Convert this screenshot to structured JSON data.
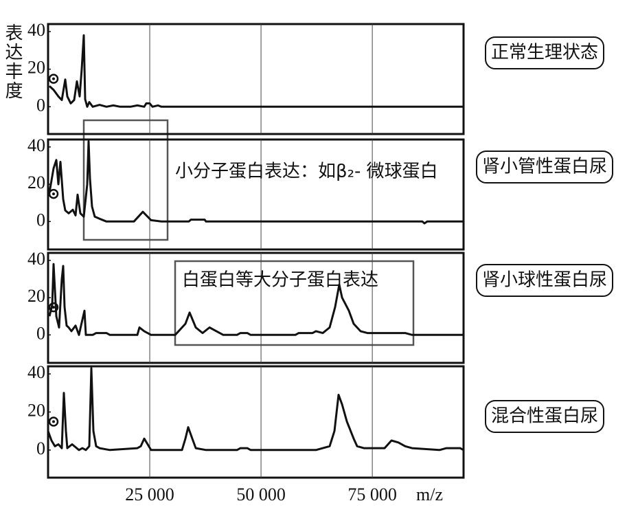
{
  "chart_data": [
    {
      "type": "line",
      "ylabel": "表达丰度",
      "label": "正常生理状态",
      "color": "#111111",
      "xlim": [
        2160,
        95500
      ],
      "ylim": [
        -14.5,
        44
      ],
      "yticks": [
        0,
        20,
        40
      ],
      "x": [
        2470,
        3400,
        4470,
        5250,
        6020,
        6480,
        7250,
        8020,
        8640,
        9260,
        9720,
        10180,
        10490,
        10960,
        11420,
        12190,
        13730,
        15280,
        16820,
        18360,
        20680,
        22220,
        23760,
        24220,
        25000,
        25610,
        26850,
        27620,
        95500
      ],
      "values": [
        11,
        9,
        5.5,
        3.6,
        14.5,
        5.5,
        1.8,
        3.6,
        13.5,
        5.5,
        20,
        38,
        4,
        0,
        2.5,
        0,
        1,
        0,
        0.7,
        0,
        0,
        0.7,
        0,
        1.8,
        1.8,
        0,
        0.7,
        0,
        0
      ]
    },
    {
      "type": "line",
      "label": "肾小管性蛋白尿",
      "annotation": "小分子蛋白表达：如β₂- 微球蛋白",
      "color": "#111111",
      "xlim": [
        2160,
        95500
      ],
      "ylim": [
        -15,
        44
      ],
      "yticks": [
        0,
        20,
        40
      ],
      "x": [
        2470,
        3400,
        4010,
        4470,
        4940,
        5550,
        6020,
        6790,
        7710,
        8330,
        8800,
        9410,
        10180,
        10960,
        11260,
        11570,
        12040,
        12650,
        13730,
        15280,
        21450,
        23450,
        25300,
        27620,
        33790,
        34250,
        37340,
        37650,
        86250,
        86720,
        87340,
        95500
      ],
      "values": [
        15.6,
        28.5,
        33,
        20,
        32,
        12,
        6,
        4.4,
        6.3,
        3.3,
        14.4,
        4.4,
        2.6,
        20,
        43,
        23,
        8,
        2.6,
        1.5,
        0,
        0,
        5.2,
        0.7,
        0,
        0,
        1,
        1,
        0,
        0,
        -1,
        0,
        0
      ]
    },
    {
      "type": "line",
      "label": "肾小球性蛋白尿",
      "annotation": "白蛋白等大分子蛋白表达",
      "color": "#111111",
      "xlim": [
        2160,
        95500
      ],
      "ylim": [
        -15,
        44
      ],
      "yticks": [
        0,
        20,
        40
      ],
      "x": [
        2470,
        3090,
        3400,
        4010,
        4630,
        5250,
        5550,
        5860,
        6330,
        6790,
        7410,
        8330,
        9100,
        9570,
        10340,
        10650,
        12190,
        12960,
        15280,
        16050,
        22220,
        22680,
        23760,
        25300,
        30710,
        33020,
        33950,
        35340,
        36880,
        38430,
        39970,
        41510,
        44600,
        45370,
        46910,
        47680,
        57710,
        58480,
        61570,
        62340,
        63880,
        65420,
        66650,
        67580,
        68200,
        69740,
        70820,
        72360,
        73900,
        82390,
        83940,
        95500
      ],
      "values": [
        10,
        16,
        38,
        10,
        4,
        30,
        37,
        15,
        5,
        4,
        2,
        5,
        0,
        5,
        13,
        0,
        0,
        1,
        1,
        0,
        0,
        4,
        2,
        0,
        0,
        6,
        12,
        4,
        1,
        4,
        2,
        0,
        0,
        1,
        1,
        0,
        0,
        1,
        1,
        2,
        1,
        4,
        15,
        27,
        20,
        13,
        6,
        2,
        1,
        1,
        0,
        0
      ]
    },
    {
      "type": "line",
      "label": "混合性蛋白尿",
      "xlabel": "m/z",
      "color": "#111111",
      "xlim": [
        2160,
        95500
      ],
      "ylim": [
        -14.5,
        44
      ],
      "yticks": [
        0,
        20,
        40
      ],
      "xticks": [
        {
          "value": 25000,
          "label": "25 000"
        },
        {
          "value": 50000,
          "label": "50 000"
        },
        {
          "value": 75000,
          "label": "75 000"
        }
      ],
      "x": [
        2160,
        2930,
        3700,
        4470,
        5250,
        5710,
        6170,
        6480,
        7560,
        9100,
        9880,
        10650,
        11420,
        11880,
        12340,
        12960,
        13730,
        16050,
        22220,
        22990,
        23760,
        24530,
        25300,
        32250,
        33020,
        33640,
        34560,
        35340,
        37650,
        44600,
        45370,
        46910,
        47680,
        62340,
        63880,
        65420,
        66500,
        67420,
        68200,
        69280,
        70820,
        71590,
        73130,
        77760,
        79300,
        80850,
        82390,
        83930,
        90100,
        91640,
        94730,
        95500
      ],
      "values": [
        10,
        5,
        2,
        3,
        1,
        30,
        10,
        1,
        3,
        0,
        1,
        0,
        2,
        43,
        10,
        2,
        1,
        0,
        1,
        2,
        6,
        3,
        0,
        0,
        6,
        12,
        6,
        1,
        0,
        0,
        1,
        1,
        0,
        0,
        1,
        2,
        10,
        29,
        24,
        15,
        6,
        2,
        1,
        1,
        5,
        4,
        2,
        1,
        0,
        1,
        1,
        0
      ]
    }
  ]
}
